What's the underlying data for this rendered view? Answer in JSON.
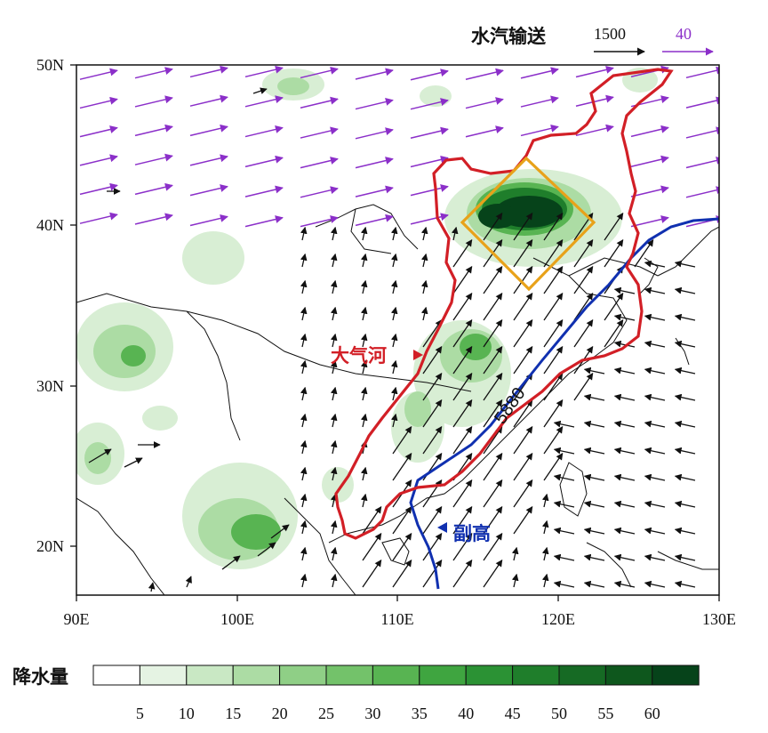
{
  "map": {
    "lon_labels": [
      "90E",
      "100E",
      "110E",
      "120E",
      "130E"
    ],
    "lat_labels": [
      "50N",
      "40N",
      "30N",
      "20N"
    ],
    "lon_range": [
      90,
      130
    ],
    "lat_range": [
      17,
      50
    ]
  },
  "legend_vectors": {
    "title": "水汽输送",
    "black_ref": "1500",
    "purple_ref": "40",
    "black_color": "#111111",
    "purple_color": "#8b2fc9"
  },
  "annotations": {
    "atmospheric_river": "大气河",
    "subtropical_high": "副高",
    "contour_label": "5880",
    "ar_color": "#d21f26",
    "high_color": "#1030b0",
    "box_color": "#e8a21a"
  },
  "colorbar": {
    "title": "降水量",
    "labels": [
      "5",
      "10",
      "15",
      "20",
      "25",
      "30",
      "35",
      "40",
      "45",
      "50",
      "55",
      "60"
    ],
    "colors": [
      "#ffffff",
      "#e5f3e3",
      "#c9e8c4",
      "#acdca4",
      "#8fcf86",
      "#73c26a",
      "#58b452",
      "#3fa540",
      "#2b9234",
      "#1f7e2b",
      "#166a24",
      "#0e571d",
      "#06431a"
    ]
  }
}
